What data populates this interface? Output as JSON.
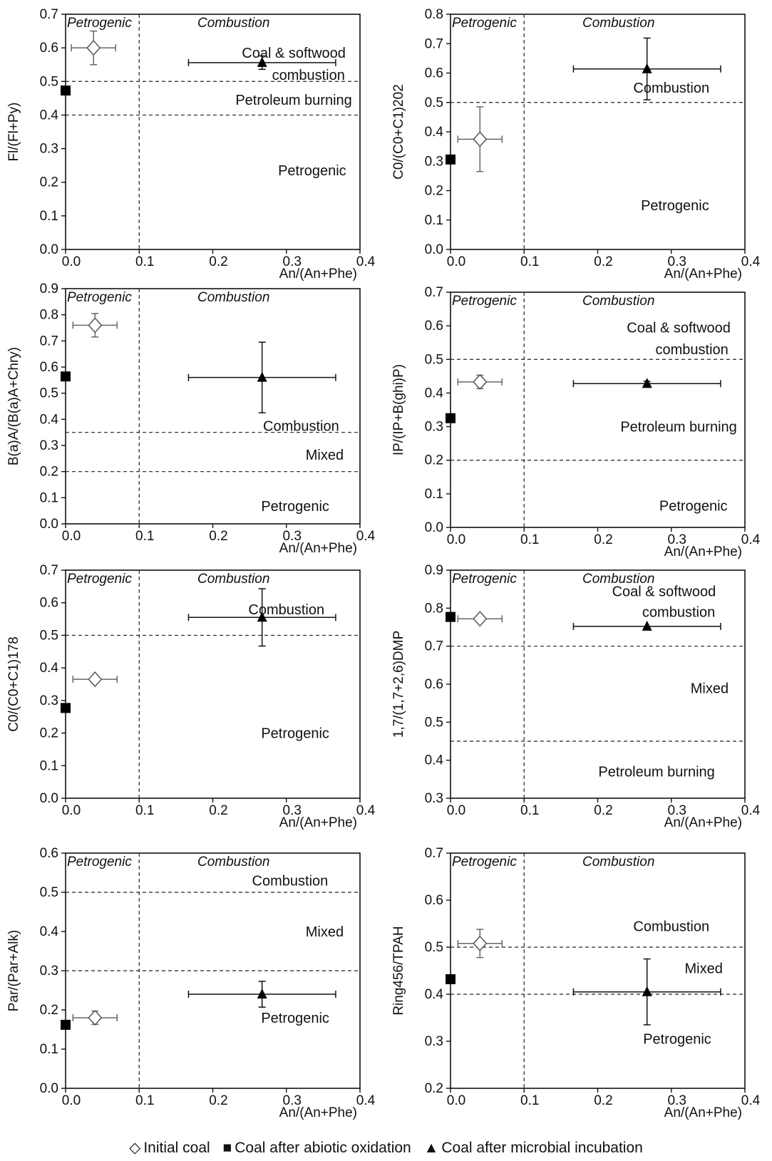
{
  "chart_data": [
    {
      "type": "scatter",
      "ylabel": "Fl/(Fl+Py)",
      "xlabel": "An/(An+Phe)",
      "xlim": [
        0,
        0.4
      ],
      "ylim": [
        0,
        0.7
      ],
      "x_ticks": [
        "0.0",
        "0.1",
        "0.2",
        "0.3",
        "0.4"
      ],
      "y_ticks": [
        "0.0",
        "0.1",
        "0.2",
        "0.3",
        "0.4",
        "0.5",
        "0.6",
        "0.7"
      ],
      "x_threshold": 0.1,
      "y_thresholds": [
        0.4,
        0.5
      ],
      "header_labels": [
        "Petrogenic",
        "Combustion"
      ],
      "region_labels": [
        {
          "text": "Coal & softwood",
          "x": 0.31,
          "y": 0.585
        },
        {
          "text": "combustion",
          "x": 0.33,
          "y": 0.52
        },
        {
          "text": "Petroleum burning",
          "x": 0.31,
          "y": 0.445
        },
        {
          "text": "Petrogenic",
          "x": 0.335,
          "y": 0.235
        }
      ],
      "points": [
        {
          "series": "Initial coal",
          "x": 0.038,
          "y": 0.6,
          "xerr": 0.03,
          "yerr": 0.05
        },
        {
          "series": "Coal after abiotic oxidation",
          "x": 0.0,
          "y": 0.473,
          "xerr": 0,
          "yerr": 0
        },
        {
          "series": "Coal after microbial incubation",
          "x": 0.267,
          "y": 0.556,
          "xerr": 0.1,
          "yerr": 0.02
        }
      ]
    },
    {
      "type": "scatter",
      "ylabel": "C0/(C0+C1)202",
      "xlabel": "An/(An+Phe)",
      "xlim": [
        0,
        0.4
      ],
      "ylim": [
        0,
        0.8
      ],
      "x_ticks": [
        "0.0",
        "0.1",
        "0.2",
        "0.3",
        "0.4"
      ],
      "y_ticks": [
        "0.0",
        "0.1",
        "0.2",
        "0.3",
        "0.4",
        "0.5",
        "0.6",
        "0.7",
        "0.8"
      ],
      "x_threshold": 0.1,
      "y_thresholds": [
        0.5
      ],
      "header_labels": [
        "Petrogenic",
        "Combustion"
      ],
      "region_labels": [
        {
          "text": "Combustion",
          "x": 0.3,
          "y": 0.55
        },
        {
          "text": "Petrogenic",
          "x": 0.305,
          "y": 0.15
        }
      ],
      "points": [
        {
          "series": "Initial coal",
          "x": 0.04,
          "y": 0.375,
          "xerr": 0.03,
          "yerr": 0.11
        },
        {
          "series": "Coal after abiotic oxidation",
          "x": 0.0,
          "y": 0.306,
          "xerr": 0,
          "yerr": 0
        },
        {
          "series": "Coal after microbial incubation",
          "x": 0.267,
          "y": 0.614,
          "xerr": 0.1,
          "yerr": 0.105
        }
      ]
    },
    {
      "type": "scatter",
      "ylabel": "B(a)A/(B(a)A+Chry)",
      "xlabel": "An/(An+Phe)",
      "xlim": [
        0,
        0.4
      ],
      "ylim": [
        0,
        0.9
      ],
      "x_ticks": [
        "0.0",
        "0.1",
        "0.2",
        "0.3",
        "0.4"
      ],
      "y_ticks": [
        "0.0",
        "0.1",
        "0.2",
        "0.3",
        "0.4",
        "0.5",
        "0.6",
        "0.7",
        "0.8",
        "0.9"
      ],
      "x_threshold": 0.1,
      "y_thresholds": [
        0.2,
        0.35
      ],
      "header_labels": [
        "Petrogenic",
        "Combustion"
      ],
      "region_labels": [
        {
          "text": "Combustion",
          "x": 0.32,
          "y": 0.375
        },
        {
          "text": "Mixed",
          "x": 0.352,
          "y": 0.265
        },
        {
          "text": "Petrogenic",
          "x": 0.312,
          "y": 0.068
        }
      ],
      "points": [
        {
          "series": "Initial coal",
          "x": 0.04,
          "y": 0.76,
          "xerr": 0.03,
          "yerr": 0.045
        },
        {
          "series": "Coal after abiotic oxidation",
          "x": 0.0,
          "y": 0.564,
          "xerr": 0,
          "yerr": 0
        },
        {
          "series": "Coal after microbial incubation",
          "x": 0.267,
          "y": 0.56,
          "xerr": 0.1,
          "yerr": 0.135
        }
      ]
    },
    {
      "type": "scatter",
      "ylabel": "IP/(IP+B(ghi)P)",
      "xlabel": "An/(An+Phe)",
      "xlim": [
        0,
        0.4
      ],
      "ylim": [
        0,
        0.7
      ],
      "x_ticks": [
        "0.0",
        "0.1",
        "0.2",
        "0.3",
        "0.4"
      ],
      "y_ticks": [
        "0.0",
        "0.1",
        "0.2",
        "0.3",
        "0.4",
        "0.5",
        "0.6",
        "0.7"
      ],
      "x_threshold": 0.1,
      "y_thresholds": [
        0.2,
        0.5
      ],
      "header_labels": [
        "Petrogenic",
        "Combustion"
      ],
      "region_labels": [
        {
          "text": "Coal & softwood",
          "x": 0.31,
          "y": 0.595
        },
        {
          "text": "combustion",
          "x": 0.328,
          "y": 0.53
        },
        {
          "text": "Petroleum burning",
          "x": 0.31,
          "y": 0.3
        },
        {
          "text": "Petrogenic",
          "x": 0.33,
          "y": 0.065
        }
      ],
      "points": [
        {
          "series": "Initial coal",
          "x": 0.04,
          "y": 0.433,
          "xerr": 0.03,
          "yerr": 0.02
        },
        {
          "series": "Coal after abiotic oxidation",
          "x": 0.0,
          "y": 0.325,
          "xerr": 0,
          "yerr": 0
        },
        {
          "series": "Coal after microbial incubation",
          "x": 0.267,
          "y": 0.428,
          "xerr": 0.1,
          "yerr": 0.007
        }
      ]
    },
    {
      "type": "scatter",
      "ylabel": "C0/(C0+C1)178",
      "xlabel": "An/(An+Phe)",
      "xlim": [
        0,
        0.4
      ],
      "ylim": [
        0,
        0.7
      ],
      "x_ticks": [
        "0.0",
        "0.1",
        "0.2",
        "0.3",
        "0.4"
      ],
      "y_ticks": [
        "0.0",
        "0.1",
        "0.2",
        "0.3",
        "0.4",
        "0.5",
        "0.6",
        "0.7"
      ],
      "x_threshold": 0.1,
      "y_thresholds": [
        0.5
      ],
      "header_labels": [
        "Petrogenic",
        "Combustion"
      ],
      "region_labels": [
        {
          "text": "Combustion",
          "x": 0.3,
          "y": 0.58
        },
        {
          "text": "Petrogenic",
          "x": 0.312,
          "y": 0.2
        }
      ],
      "points": [
        {
          "series": "Initial coal",
          "x": 0.04,
          "y": 0.365,
          "xerr": 0.03,
          "yerr": 0
        },
        {
          "series": "Coal after abiotic oxidation",
          "x": 0.0,
          "y": 0.277,
          "xerr": 0,
          "yerr": 0
        },
        {
          "series": "Coal after microbial incubation",
          "x": 0.267,
          "y": 0.555,
          "xerr": 0.1,
          "yerr": 0.088
        }
      ]
    },
    {
      "type": "scatter",
      "ylabel": "1,7/(1,7+2,6)DMP",
      "xlabel": "An/(An+Phe)",
      "xlim": [
        0,
        0.4
      ],
      "ylim": [
        0.3,
        0.9
      ],
      "x_ticks": [
        "0.0",
        "0.1",
        "0.2",
        "0.3",
        "0.4"
      ],
      "y_ticks": [
        "0.3",
        "0.4",
        "0.5",
        "0.6",
        "0.7",
        "0.8",
        "0.9"
      ],
      "x_threshold": 0.1,
      "y_thresholds": [
        0.45,
        0.7
      ],
      "header_labels": [
        "Petrogenic",
        "Combustion"
      ],
      "region_labels": [
        {
          "text": "Coal & softwood",
          "x": 0.29,
          "y": 0.845
        },
        {
          "text": "combustion",
          "x": 0.31,
          "y": 0.79
        },
        {
          "text": "Mixed",
          "x": 0.352,
          "y": 0.59
        },
        {
          "text": "Petroleum burning",
          "x": 0.28,
          "y": 0.37
        }
      ],
      "points": [
        {
          "series": "Initial coal",
          "x": 0.04,
          "y": 0.772,
          "xerr": 0.03,
          "yerr": 0
        },
        {
          "series": "Coal after abiotic oxidation",
          "x": 0.0,
          "y": 0.777,
          "xerr": 0,
          "yerr": 0
        },
        {
          "series": "Coal after microbial incubation",
          "x": 0.267,
          "y": 0.752,
          "xerr": 0.1,
          "yerr": 0
        }
      ]
    },
    {
      "type": "scatter",
      "ylabel": "Par/(Par+Alk)",
      "xlabel": "An/(An+Phe)",
      "xlim": [
        0,
        0.4
      ],
      "ylim": [
        0,
        0.6
      ],
      "x_ticks": [
        "0.0",
        "0.1",
        "0.2",
        "0.3",
        "0.4"
      ],
      "y_ticks": [
        "0.0",
        "0.1",
        "0.2",
        "0.3",
        "0.4",
        "0.5",
        "0.6"
      ],
      "x_threshold": 0.1,
      "y_thresholds": [
        0.3,
        0.5
      ],
      "header_labels": [
        "Petrogenic",
        "Combustion"
      ],
      "region_labels": [
        {
          "text": "Combustion",
          "x": 0.305,
          "y": 0.53
        },
        {
          "text": "Mixed",
          "x": 0.352,
          "y": 0.4
        },
        {
          "text": "Petrogenic",
          "x": 0.312,
          "y": 0.18
        }
      ],
      "points": [
        {
          "series": "Initial coal",
          "x": 0.04,
          "y": 0.18,
          "xerr": 0.03,
          "yerr": 0.017
        },
        {
          "series": "Coal after abiotic oxidation",
          "x": 0.0,
          "y": 0.162,
          "xerr": 0,
          "yerr": 0
        },
        {
          "series": "Coal after microbial incubation",
          "x": 0.267,
          "y": 0.24,
          "xerr": 0.1,
          "yerr": 0.033
        }
      ]
    },
    {
      "type": "scatter",
      "ylabel": "Ring456/TPAH",
      "xlabel": "An/(An+Phe)",
      "xlim": [
        0,
        0.4
      ],
      "ylim": [
        0.2,
        0.7
      ],
      "x_ticks": [
        "0.0",
        "0.1",
        "0.2",
        "0.3",
        "0.4"
      ],
      "y_ticks": [
        "0.2",
        "0.3",
        "0.4",
        "0.5",
        "0.6",
        "0.7"
      ],
      "x_threshold": 0.1,
      "y_thresholds": [
        0.4,
        0.5
      ],
      "header_labels": [
        "Petrogenic",
        "Combustion"
      ],
      "region_labels": [
        {
          "text": "Combustion",
          "x": 0.3,
          "y": 0.545
        },
        {
          "text": "Mixed",
          "x": 0.344,
          "y": 0.455
        },
        {
          "text": "Petrogenic",
          "x": 0.308,
          "y": 0.305
        }
      ],
      "points": [
        {
          "series": "Initial coal",
          "x": 0.04,
          "y": 0.508,
          "xerr": 0.03,
          "yerr": 0.03
        },
        {
          "series": "Coal after abiotic oxidation",
          "x": 0.0,
          "y": 0.432,
          "xerr": 0,
          "yerr": 0
        },
        {
          "series": "Coal after microbial incubation",
          "x": 0.267,
          "y": 0.405,
          "xerr": 0.1,
          "yerr": 0.07
        }
      ]
    }
  ],
  "legend": {
    "items": [
      {
        "symbol": "◇",
        "label": "Initial coal"
      },
      {
        "symbol": "■",
        "label": "Coal after abiotic oxidation"
      },
      {
        "symbol": "▲",
        "label": "Coal after microbial incubation"
      }
    ]
  }
}
